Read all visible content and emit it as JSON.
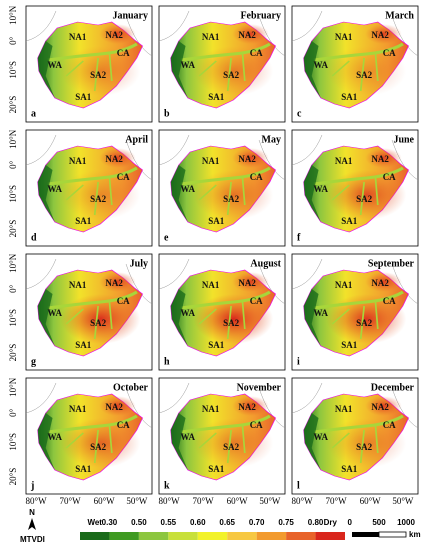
{
  "panels": [
    {
      "month": "January",
      "letter": "a"
    },
    {
      "month": "February",
      "letter": "b"
    },
    {
      "month": "March",
      "letter": "c"
    },
    {
      "month": "April",
      "letter": "d"
    },
    {
      "month": "May",
      "letter": "e"
    },
    {
      "month": "June",
      "letter": "f"
    },
    {
      "month": "July",
      "letter": "g"
    },
    {
      "month": "August",
      "letter": "h"
    },
    {
      "month": "September",
      "letter": "i"
    },
    {
      "month": "October",
      "letter": "j"
    },
    {
      "month": "November",
      "letter": "k"
    },
    {
      "month": "December",
      "letter": "l"
    }
  ],
  "regions": [
    "NA1",
    "NA2",
    "CA",
    "WA",
    "SA2",
    "SA1"
  ],
  "lat_labels": [
    "10°N",
    "0°",
    "10°S",
    "20°S"
  ],
  "lon_labels": [
    "80°W",
    "70°W",
    "60°W",
    "50°W"
  ],
  "legend": {
    "north": "N",
    "title": "MTVDI",
    "low": "Wet",
    "high": "Dry",
    "ticks": [
      {
        "value": 0.3,
        "label": "0.30"
      },
      {
        "value": 0.5,
        "label": "0.50"
      },
      {
        "value": 0.55,
        "label": "0.55"
      },
      {
        "value": 0.6,
        "label": "0.60"
      },
      {
        "value": 0.65,
        "label": "0.65"
      },
      {
        "value": 0.7,
        "label": "0.70"
      },
      {
        "value": 0.75,
        "label": "0.75"
      },
      {
        "value": 0.8,
        "label": "0.80"
      }
    ],
    "colors": [
      "#1a6b1a",
      "#3f9a22",
      "#8cc63f",
      "#c8e03a",
      "#f2f22a",
      "#f7c842",
      "#f29a2e",
      "#e8632a",
      "#d9261c"
    ]
  },
  "scale": {
    "ticks": [
      0,
      500,
      1000
    ],
    "unit": "km"
  }
}
